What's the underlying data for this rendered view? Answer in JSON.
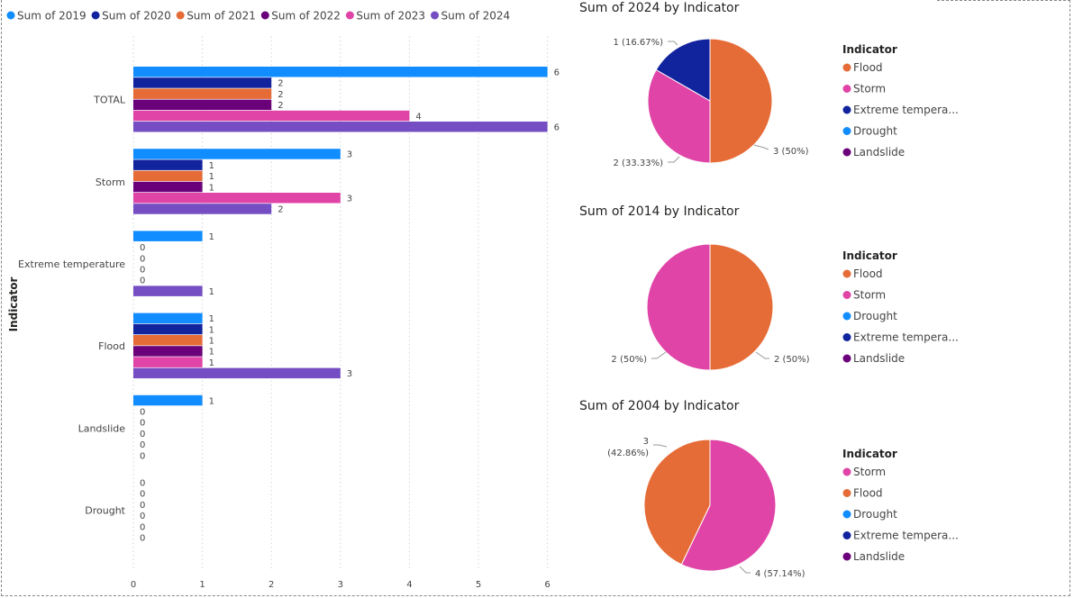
{
  "bar_chart": {
    "legend": [
      {
        "name": "Sum of 2019",
        "color": "#118DFF"
      },
      {
        "name": "Sum of 2020",
        "color": "#12239E"
      },
      {
        "name": "Sum of 2021",
        "color": "#E66C37"
      },
      {
        "name": "Sum of 2022",
        "color": "#6B007B"
      },
      {
        "name": "Sum of 2023",
        "color": "#E044A7"
      },
      {
        "name": "Sum of 2024",
        "color": "#744EC2"
      }
    ],
    "ylabel": "Indicator"
  },
  "chart_data": [
    {
      "type": "bar",
      "orientation": "horizontal",
      "categories": [
        "TOTAL",
        "Storm",
        "Extreme temperature",
        "Flood",
        "Landslide",
        "Drought"
      ],
      "series": [
        {
          "name": "Sum of 2019",
          "values": [
            6,
            3,
            1,
            1,
            1,
            0
          ]
        },
        {
          "name": "Sum of 2020",
          "values": [
            2,
            1,
            0,
            1,
            0,
            0
          ]
        },
        {
          "name": "Sum of 2021",
          "values": [
            2,
            1,
            0,
            1,
            0,
            0
          ]
        },
        {
          "name": "Sum of 2022",
          "values": [
            2,
            1,
            0,
            1,
            0,
            0
          ]
        },
        {
          "name": "Sum of 2023",
          "values": [
            4,
            3,
            0,
            1,
            0,
            0
          ]
        },
        {
          "name": "Sum of 2024",
          "values": [
            6,
            2,
            1,
            3,
            0,
            0
          ]
        }
      ],
      "xticks": [
        0,
        1,
        2,
        3,
        4,
        5,
        6
      ],
      "xlim": [
        0,
        6.1
      ],
      "ylabel": "Indicator",
      "legend_position": "top-left",
      "grid": "vertical dotted"
    },
    {
      "type": "pie",
      "title": "Sum of 2024 by Indicator",
      "legend_title": "Indicator",
      "legend": [
        "Flood",
        "Storm",
        "Extreme tempera...",
        "Drought",
        "Landslide"
      ],
      "legend_colors": [
        "#E66C37",
        "#E044A7",
        "#12239E",
        "#118DFF",
        "#6B007B"
      ],
      "slices": [
        {
          "label": "Flood",
          "value": 3,
          "color": "#E66C37",
          "text": "3 (50%)"
        },
        {
          "label": "Storm",
          "value": 2,
          "color": "#E044A7",
          "text": "2 (33.33%)"
        },
        {
          "label": "Extreme temperature",
          "value": 1,
          "color": "#12239E",
          "text": "1 (16.67%)"
        }
      ]
    },
    {
      "type": "pie",
      "title": "Sum of 2014 by Indicator",
      "legend_title": "Indicator",
      "legend": [
        "Flood",
        "Storm",
        "Drought",
        "Extreme tempera...",
        "Landslide"
      ],
      "legend_colors": [
        "#E66C37",
        "#E044A7",
        "#118DFF",
        "#12239E",
        "#6B007B"
      ],
      "slices": [
        {
          "label": "Flood",
          "value": 2,
          "color": "#E66C37",
          "text": "2 (50%)"
        },
        {
          "label": "Storm",
          "value": 2,
          "color": "#E044A7",
          "text": "2 (50%)"
        }
      ]
    },
    {
      "type": "pie",
      "title": "Sum of 2004 by Indicator",
      "legend_title": "Indicator",
      "legend": [
        "Storm",
        "Flood",
        "Drought",
        "Extreme tempera...",
        "Landslide"
      ],
      "legend_colors": [
        "#E044A7",
        "#E66C37",
        "#118DFF",
        "#12239E",
        "#6B007B"
      ],
      "slices": [
        {
          "label": "Storm",
          "value": 4,
          "color": "#E044A7",
          "text": "4 (57.14%)"
        },
        {
          "label": "Flood",
          "value": 3,
          "color": "#E66C37",
          "text": "3 (42.86%)"
        }
      ]
    }
  ]
}
